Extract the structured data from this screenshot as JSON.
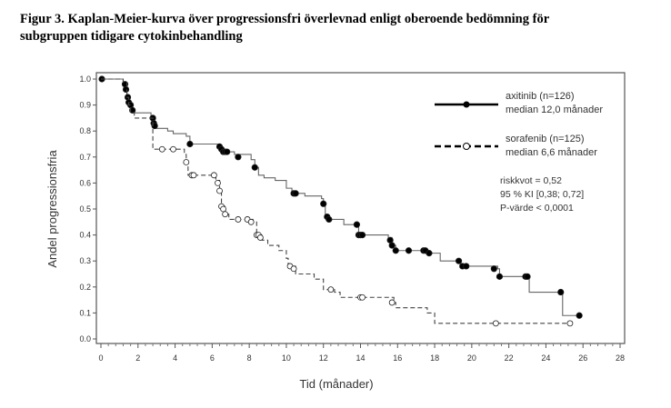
{
  "chart_data": {
    "type": "line",
    "subtype": "kaplan-meier",
    "title_lines": [
      "Figur 3. Kaplan-Meier-kurva över progressionsfri överlevnad enligt oberoende bedömning för",
      "subgruppen tidigare cytokinbehandling"
    ],
    "xlabel": "Tid (månader)",
    "ylabel": "Andel progressionsfria",
    "xlim": [
      0,
      28
    ],
    "ylim": [
      0,
      1.0
    ],
    "xticks": [
      "0",
      "2",
      "4",
      "6",
      "8",
      "10",
      "12",
      "14",
      "16",
      "18",
      "20",
      "22",
      "24",
      "26",
      "28"
    ],
    "yticks": [
      "0.0",
      "0.1",
      "0.2",
      "0.3",
      "0.4",
      "0.5",
      "0.6",
      "0.7",
      "0.8",
      "0.9",
      "1.0"
    ],
    "grid": false,
    "legend_position": "top-right",
    "series": [
      {
        "name": "axitinib (n=126)",
        "median": "median 12,0 månader",
        "style": "solid",
        "marker": "filled-circle",
        "color": "#000000",
        "steps": [
          [
            0,
            1.0
          ],
          [
            1.2,
            0.98
          ],
          [
            1.3,
            0.96
          ],
          [
            1.4,
            0.93
          ],
          [
            1.5,
            0.91
          ],
          [
            1.6,
            0.88
          ],
          [
            1.7,
            0.87
          ],
          [
            2.7,
            0.85
          ],
          [
            2.8,
            0.83
          ],
          [
            2.9,
            0.81
          ],
          [
            3.6,
            0.8
          ],
          [
            3.9,
            0.79
          ],
          [
            4.6,
            0.78
          ],
          [
            4.8,
            0.75
          ],
          [
            6.3,
            0.74
          ],
          [
            6.4,
            0.73
          ],
          [
            6.6,
            0.72
          ],
          [
            7.2,
            0.71
          ],
          [
            8.1,
            0.69
          ],
          [
            8.3,
            0.66
          ],
          [
            8.5,
            0.63
          ],
          [
            8.8,
            0.62
          ],
          [
            9.4,
            0.61
          ],
          [
            10.0,
            0.58
          ],
          [
            10.3,
            0.56
          ],
          [
            11.0,
            0.55
          ],
          [
            11.9,
            0.54
          ],
          [
            12.0,
            0.52
          ],
          [
            12.1,
            0.47
          ],
          [
            12.3,
            0.46
          ],
          [
            13.1,
            0.44
          ],
          [
            13.8,
            0.43
          ],
          [
            13.9,
            0.4
          ],
          [
            15.5,
            0.39
          ],
          [
            15.7,
            0.36
          ],
          [
            15.9,
            0.34
          ],
          [
            17.6,
            0.33
          ],
          [
            18.3,
            0.3
          ],
          [
            19.4,
            0.28
          ],
          [
            21.4,
            0.27
          ],
          [
            21.5,
            0.24
          ],
          [
            23.1,
            0.18
          ],
          [
            24.9,
            0.09
          ],
          [
            25.8,
            0.09
          ]
        ],
        "censored": [
          [
            0.05,
            1.0
          ],
          [
            1.3,
            0.98
          ],
          [
            1.35,
            0.96
          ],
          [
            1.45,
            0.93
          ],
          [
            1.5,
            0.91
          ],
          [
            1.6,
            0.9
          ],
          [
            1.7,
            0.88
          ],
          [
            2.8,
            0.85
          ],
          [
            2.85,
            0.83
          ],
          [
            2.9,
            0.82
          ],
          [
            4.8,
            0.75
          ],
          [
            6.4,
            0.74
          ],
          [
            6.5,
            0.73
          ],
          [
            6.6,
            0.72
          ],
          [
            6.7,
            0.72
          ],
          [
            6.8,
            0.72
          ],
          [
            7.4,
            0.7
          ],
          [
            8.3,
            0.66
          ],
          [
            10.4,
            0.56
          ],
          [
            10.5,
            0.56
          ],
          [
            12.0,
            0.52
          ],
          [
            12.2,
            0.47
          ],
          [
            12.3,
            0.46
          ],
          [
            13.8,
            0.44
          ],
          [
            13.9,
            0.4
          ],
          [
            14.0,
            0.4
          ],
          [
            14.1,
            0.4
          ],
          [
            15.6,
            0.38
          ],
          [
            15.7,
            0.36
          ],
          [
            15.9,
            0.34
          ],
          [
            16.6,
            0.34
          ],
          [
            17.4,
            0.34
          ],
          [
            17.5,
            0.34
          ],
          [
            17.7,
            0.33
          ],
          [
            19.3,
            0.3
          ],
          [
            19.5,
            0.28
          ],
          [
            19.7,
            0.28
          ],
          [
            21.2,
            0.27
          ],
          [
            21.5,
            0.24
          ],
          [
            22.9,
            0.24
          ],
          [
            23.0,
            0.24
          ],
          [
            24.8,
            0.18
          ],
          [
            25.8,
            0.09
          ]
        ]
      },
      {
        "name": "sorafenib (n=125)",
        "median": "median 6,6 månader",
        "style": "dashed",
        "marker": "open-circle",
        "color": "#000000",
        "steps": [
          [
            0,
            1.0
          ],
          [
            1.2,
            0.99
          ],
          [
            1.4,
            0.93
          ],
          [
            1.5,
            0.9
          ],
          [
            1.6,
            0.87
          ],
          [
            1.8,
            0.85
          ],
          [
            2.8,
            0.73
          ],
          [
            4.5,
            0.71
          ],
          [
            4.6,
            0.68
          ],
          [
            4.7,
            0.63
          ],
          [
            6.2,
            0.61
          ],
          [
            6.4,
            0.57
          ],
          [
            6.5,
            0.51
          ],
          [
            6.7,
            0.48
          ],
          [
            6.9,
            0.46
          ],
          [
            8.2,
            0.45
          ],
          [
            8.4,
            0.4
          ],
          [
            8.7,
            0.38
          ],
          [
            9.0,
            0.36
          ],
          [
            9.6,
            0.34
          ],
          [
            10.0,
            0.31
          ],
          [
            10.1,
            0.28
          ],
          [
            10.5,
            0.25
          ],
          [
            11.5,
            0.23
          ],
          [
            12.0,
            0.19
          ],
          [
            12.6,
            0.18
          ],
          [
            12.9,
            0.16
          ],
          [
            15.8,
            0.14
          ],
          [
            15.9,
            0.12
          ],
          [
            17.6,
            0.1
          ],
          [
            18.0,
            0.06
          ],
          [
            25.3,
            0.06
          ]
        ],
        "censored": [
          [
            3.3,
            0.73
          ],
          [
            3.9,
            0.73
          ],
          [
            4.6,
            0.68
          ],
          [
            4.9,
            0.63
          ],
          [
            5.0,
            0.63
          ],
          [
            6.1,
            0.63
          ],
          [
            6.3,
            0.6
          ],
          [
            6.4,
            0.57
          ],
          [
            6.5,
            0.51
          ],
          [
            6.6,
            0.5
          ],
          [
            6.7,
            0.48
          ],
          [
            7.4,
            0.46
          ],
          [
            7.9,
            0.46
          ],
          [
            8.1,
            0.45
          ],
          [
            8.4,
            0.4
          ],
          [
            8.5,
            0.4
          ],
          [
            8.6,
            0.39
          ],
          [
            10.2,
            0.28
          ],
          [
            10.4,
            0.27
          ],
          [
            12.4,
            0.19
          ],
          [
            14.0,
            0.16
          ],
          [
            14.1,
            0.16
          ],
          [
            15.7,
            0.14
          ],
          [
            21.3,
            0.06
          ],
          [
            25.3,
            0.06
          ]
        ]
      }
    ],
    "annotations": [
      "riskkvot = 0,52",
      "95 % KI [0,38; 0,72]",
      "P-värde < 0,0001"
    ]
  }
}
